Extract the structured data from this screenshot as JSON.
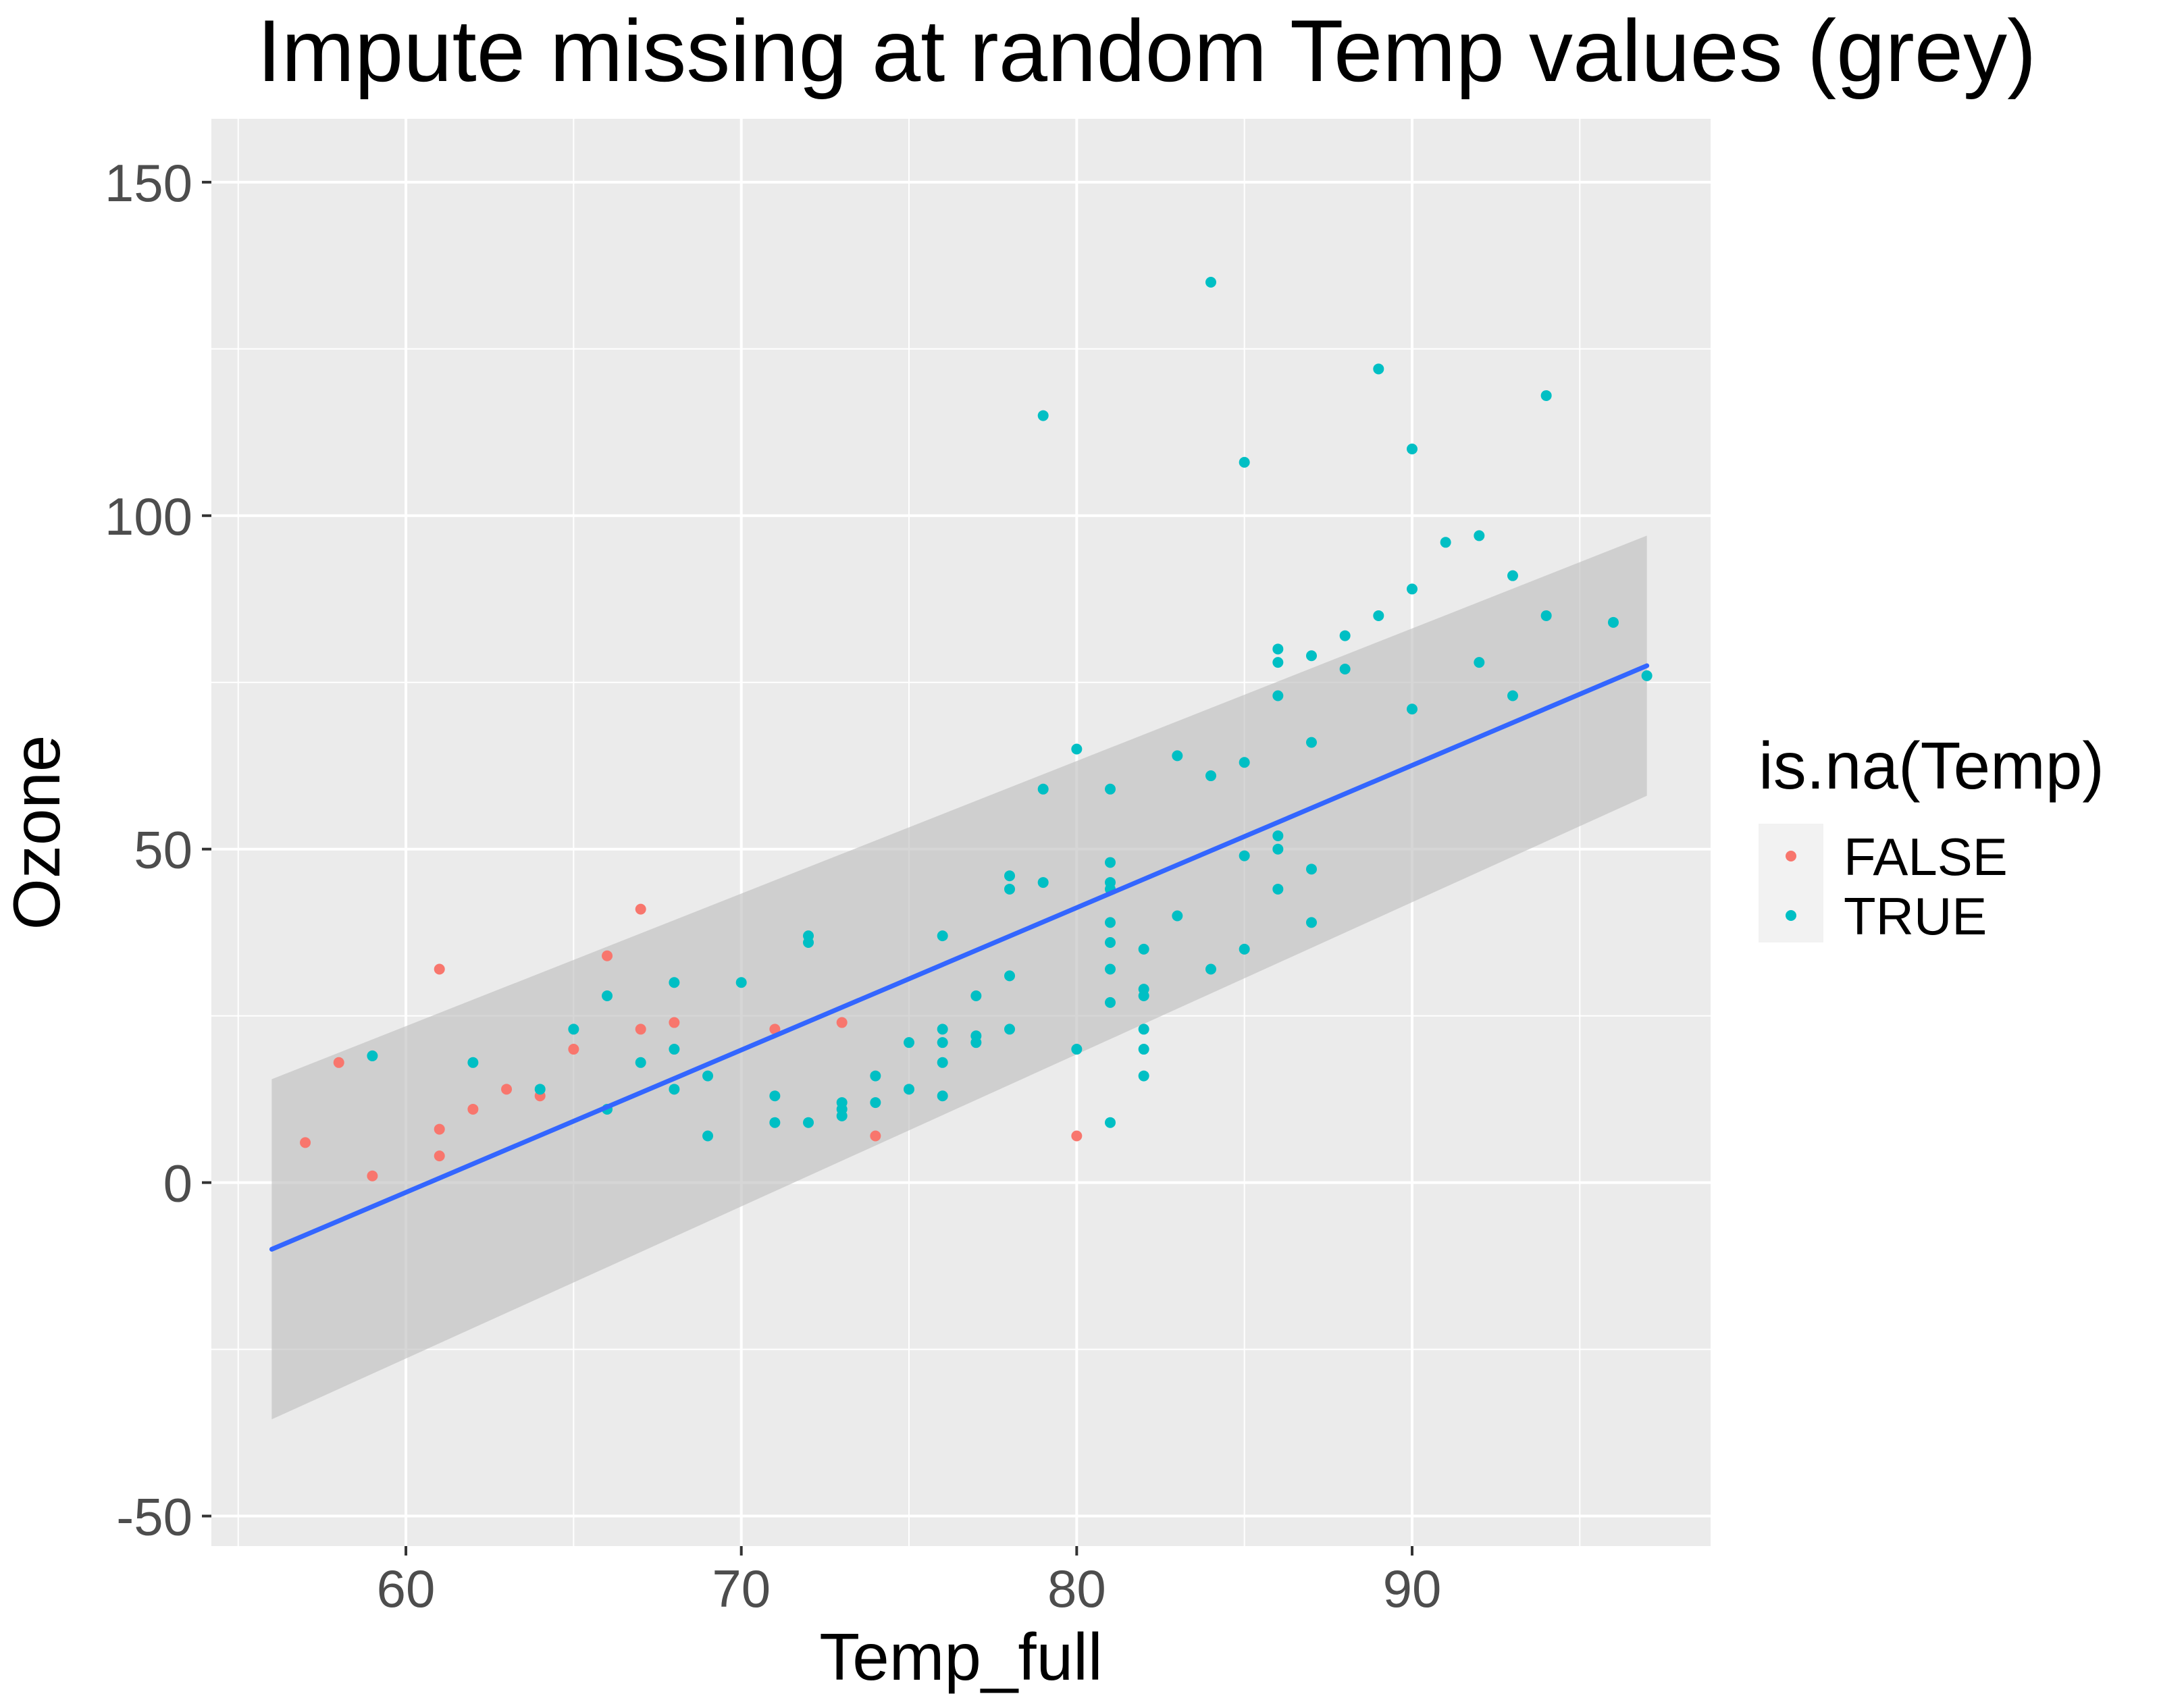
{
  "chart_data": {
    "type": "scatter",
    "title": "Impute missing at random Temp values (grey)",
    "xlabel": "Temp_full",
    "ylabel": "Ozone",
    "xlim": [
      54.2,
      98.9
    ],
    "ylim": [
      -54.5,
      159.5
    ],
    "x_ticks": [
      60,
      70,
      80,
      90
    ],
    "y_ticks": [
      -50,
      0,
      50,
      100,
      150
    ],
    "grid": true,
    "legend": {
      "title": "is.na(Temp)",
      "position": "right",
      "entries": [
        {
          "label": "FALSE",
          "color": "#F8766D"
        },
        {
          "label": "TRUE",
          "color": "#00BFC4"
        }
      ]
    },
    "colors": {
      "panel_background": "#EBEBEB",
      "gridline": "#FFFFFF",
      "smooth_line": "#3366FF",
      "confidence_band": "#C0C0C0"
    },
    "smooth": {
      "method": "linear",
      "x": [
        56,
        97
      ],
      "y": [
        -10,
        77.5
      ],
      "ci_lower": [
        -35.5,
        58
      ],
      "ci_upper": [
        15.5,
        97
      ]
    },
    "series": [
      {
        "name": "FALSE",
        "color": "#F8766D",
        "points": [
          [
            57,
            6
          ],
          [
            58,
            18
          ],
          [
            59,
            1
          ],
          [
            61,
            32
          ],
          [
            61,
            8
          ],
          [
            61,
            4
          ],
          [
            62,
            11
          ],
          [
            63,
            14
          ],
          [
            64,
            13
          ],
          [
            65,
            20
          ],
          [
            66,
            34
          ],
          [
            67,
            41
          ],
          [
            67,
            23
          ],
          [
            68,
            24
          ],
          [
            71,
            23
          ],
          [
            73,
            24
          ],
          [
            74,
            7
          ],
          [
            80,
            7
          ]
        ]
      },
      {
        "name": "TRUE",
        "color": "#00BFC4",
        "points": [
          [
            59,
            19
          ],
          [
            62,
            18
          ],
          [
            64,
            14
          ],
          [
            65,
            23
          ],
          [
            66,
            28
          ],
          [
            66,
            11
          ],
          [
            67,
            18
          ],
          [
            68,
            30
          ],
          [
            68,
            20
          ],
          [
            68,
            14
          ],
          [
            69,
            16
          ],
          [
            69,
            7
          ],
          [
            70,
            30
          ],
          [
            71,
            13
          ],
          [
            71,
            9
          ],
          [
            72,
            37
          ],
          [
            72,
            36
          ],
          [
            72,
            9
          ],
          [
            73,
            12
          ],
          [
            73,
            11
          ],
          [
            73,
            10
          ],
          [
            74,
            16
          ],
          [
            74,
            12
          ],
          [
            75,
            21
          ],
          [
            75,
            14
          ],
          [
            76,
            37
          ],
          [
            76,
            23
          ],
          [
            76,
            21
          ],
          [
            76,
            18
          ],
          [
            76,
            13
          ],
          [
            77,
            28
          ],
          [
            77,
            22
          ],
          [
            77,
            21
          ],
          [
            78,
            46
          ],
          [
            78,
            44
          ],
          [
            78,
            31
          ],
          [
            78,
            23
          ],
          [
            79,
            115
          ],
          [
            79,
            59
          ],
          [
            79,
            45
          ],
          [
            80,
            65
          ],
          [
            80,
            20
          ],
          [
            81,
            59
          ],
          [
            81,
            48
          ],
          [
            81,
            45
          ],
          [
            81,
            44
          ],
          [
            81,
            39
          ],
          [
            81,
            36
          ],
          [
            81,
            32
          ],
          [
            81,
            27
          ],
          [
            81,
            9
          ],
          [
            82,
            35
          ],
          [
            82,
            29
          ],
          [
            82,
            28
          ],
          [
            82,
            23
          ],
          [
            82,
            20
          ],
          [
            82,
            16
          ],
          [
            83,
            64
          ],
          [
            83,
            40
          ],
          [
            84,
            135
          ],
          [
            84,
            61
          ],
          [
            84,
            32
          ],
          [
            85,
            108
          ],
          [
            85,
            63
          ],
          [
            85,
            49
          ],
          [
            85,
            35
          ],
          [
            86,
            80
          ],
          [
            86,
            78
          ],
          [
            86,
            73
          ],
          [
            86,
            52
          ],
          [
            86,
            50
          ],
          [
            86,
            44
          ],
          [
            87,
            79
          ],
          [
            87,
            66
          ],
          [
            87,
            47
          ],
          [
            87,
            39
          ],
          [
            88,
            82
          ],
          [
            88,
            77
          ],
          [
            89,
            122
          ],
          [
            89,
            85
          ],
          [
            90,
            110
          ],
          [
            90,
            89
          ],
          [
            90,
            71
          ],
          [
            91,
            96
          ],
          [
            92,
            97
          ],
          [
            92,
            78
          ],
          [
            93,
            91
          ],
          [
            93,
            73
          ],
          [
            94,
            118
          ],
          [
            94,
            85
          ],
          [
            96,
            84
          ],
          [
            97,
            76
          ]
        ]
      }
    ]
  }
}
